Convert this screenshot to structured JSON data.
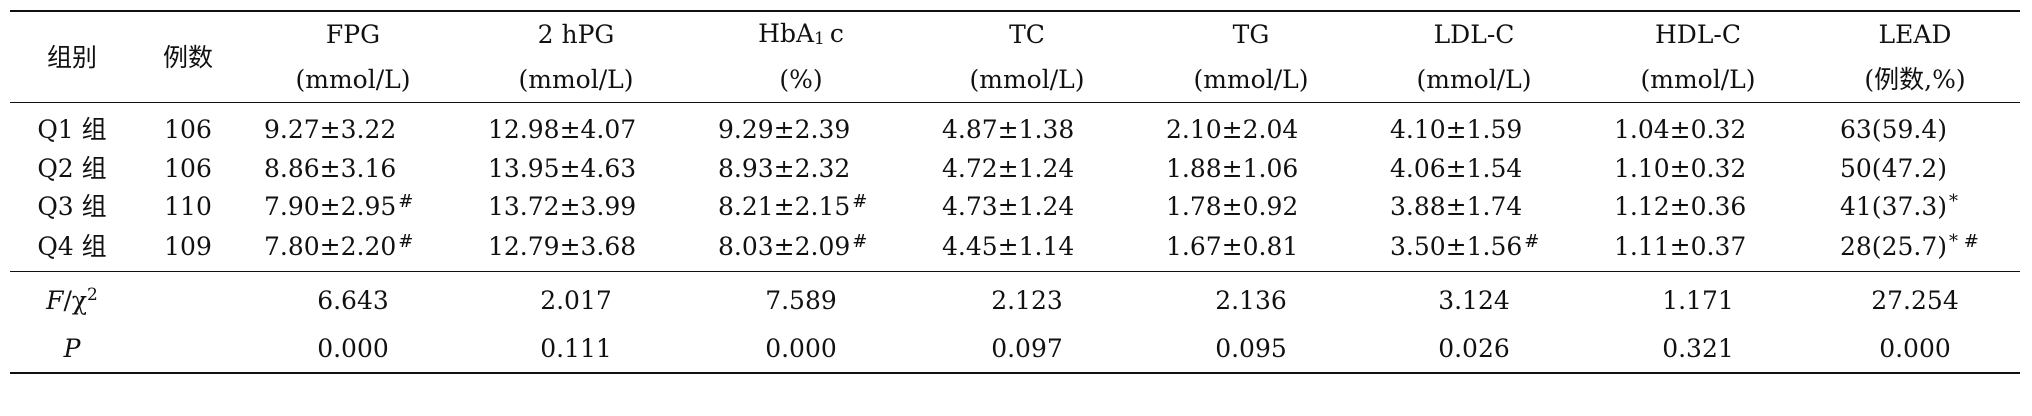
{
  "columns": {
    "group": "组别",
    "cases": "例数",
    "fpg": {
      "name": "FPG",
      "unit": "(mmol/L)"
    },
    "hpg": {
      "name": "2 hPG",
      "unit": "(mmol/L)"
    },
    "hba1c": {
      "name_pre": "HbA",
      "name_sub": "1",
      "name_post": "c",
      "unit": "(%)"
    },
    "tc": {
      "name": "TC",
      "unit": "(mmol/L)"
    },
    "tg": {
      "name": "TG",
      "unit": "(mmol/L)"
    },
    "ldl": {
      "name": "LDL-C",
      "unit": "(mmol/L)"
    },
    "hdl": {
      "name": "HDL-C",
      "unit": "(mmol/L)"
    },
    "lead": {
      "name": "LEAD",
      "unit": "(例数,%)"
    }
  },
  "rows": [
    {
      "group": "Q1 组",
      "n": "106",
      "fpg": "9.27±3.22",
      "fpg_m": "",
      "hpg": "12.98±4.07",
      "hba1c": "9.29±2.39",
      "hba1c_m": "",
      "tc": "4.87±1.38",
      "tg": "2.10±2.04",
      "ldl": "4.10±1.59",
      "ldl_m": "",
      "hdl": "1.04±0.32",
      "lead": "63(59.4)",
      "lead_m": ""
    },
    {
      "group": "Q2 组",
      "n": "106",
      "fpg": "8.86±3.16",
      "fpg_m": "",
      "hpg": "13.95±4.63",
      "hba1c": "8.93±2.32",
      "hba1c_m": "",
      "tc": "4.72±1.24",
      "tg": "1.88±1.06",
      "ldl": "4.06±1.54",
      "ldl_m": "",
      "hdl": "1.10±0.32",
      "lead": "50(47.2)",
      "lead_m": ""
    },
    {
      "group": "Q3 组",
      "n": "110",
      "fpg": "7.90±2.95",
      "fpg_m": "#",
      "hpg": "13.72±3.99",
      "hba1c": "8.21±2.15",
      "hba1c_m": "#",
      "tc": "4.73±1.24",
      "tg": "1.78±0.92",
      "ldl": "3.88±1.74",
      "ldl_m": "",
      "hdl": "1.12±0.36",
      "lead": "41(37.3)",
      "lead_m": "*"
    },
    {
      "group": "Q4 组",
      "n": "109",
      "fpg": "7.80±2.20",
      "fpg_m": "#",
      "hpg": "12.79±3.68",
      "hba1c": "8.03±2.09",
      "hba1c_m": "#",
      "tc": "4.45±1.14",
      "tg": "1.67±0.81",
      "ldl": "3.50±1.56",
      "ldl_m": "#",
      "hdl": "1.11±0.37",
      "lead": "28(25.7)",
      "lead_m": "* #"
    }
  ],
  "stats": [
    {
      "label_italic": "F",
      "label_rest": "/χ",
      "label_sup": "2",
      "fpg": "6.643",
      "hpg": "2.017",
      "hba1c": "7.589",
      "tc": "2.123",
      "tg": "2.136",
      "ldl": "3.124",
      "hdl": "1.171",
      "lead": "27.254"
    },
    {
      "label_italic": "P",
      "label_rest": "",
      "label_sup": "",
      "fpg": "0.000",
      "hpg": "0.111",
      "hba1c": "0.000",
      "tc": "0.097",
      "tg": "0.095",
      "ldl": "0.026",
      "hdl": "0.321",
      "lead": "0.000"
    }
  ]
}
